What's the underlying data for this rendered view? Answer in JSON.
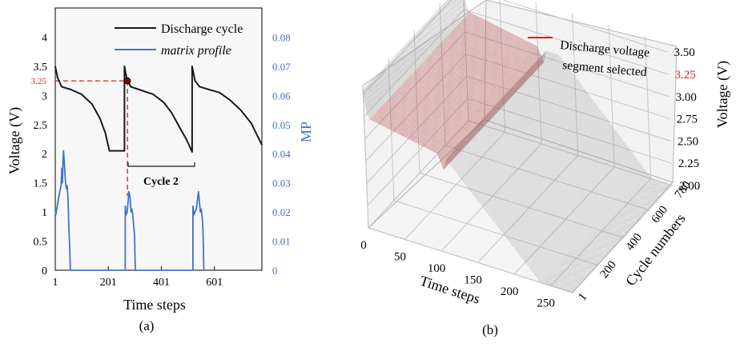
{
  "chart_data": [
    {
      "type": "line",
      "panel_label": "(a)",
      "xlabel": "Time steps",
      "ylabel_left": "Voltage (V)",
      "ylabel_right": "MP",
      "xlim": [
        1,
        780
      ],
      "ylim_left": [
        0,
        4.5
      ],
      "ylim_right": [
        0,
        0.09
      ],
      "x_ticks": [
        1,
        201,
        401,
        601
      ],
      "y_left_ticks": [
        "0",
        "0.5",
        "1",
        "1.5",
        "2",
        "2.5",
        "3",
        "3.5",
        "4"
      ],
      "y_right_ticks": [
        "0",
        "0.01",
        "0.02",
        "0.03",
        "0.04",
        "0.05",
        "0.06",
        "0.07",
        "0.08"
      ],
      "legend": [
        {
          "label": "Discharge cycle",
          "color": "#1a1a1a"
        },
        {
          "label": "matrix profile",
          "color": "#4472c4",
          "italic": true
        }
      ],
      "annotation_value_label": "3.25",
      "annotation_color": "#e31a1c",
      "bracket_label": "Cycle 2",
      "marked_point": {
        "x": 273,
        "y": 3.25
      },
      "series": [
        {
          "name": "Discharge cycle",
          "axis": "left",
          "color": "#1a1a1a",
          "points": [
            [
              1,
              3.5
            ],
            [
              10,
              3.3
            ],
            [
              25,
              3.15
            ],
            [
              60,
              3.1
            ],
            [
              100,
              3.02
            ],
            [
              140,
              2.85
            ],
            [
              170,
              2.6
            ],
            [
              190,
              2.35
            ],
            [
              205,
              2.05
            ],
            [
              262,
              2.05
            ],
            [
              262,
              3.5
            ],
            [
              270,
              3.3
            ],
            [
              285,
              3.15
            ],
            [
              330,
              3.08
            ],
            [
              370,
              3.02
            ],
            [
              410,
              2.88
            ],
            [
              440,
              2.7
            ],
            [
              470,
              2.45
            ],
            [
              495,
              2.25
            ],
            [
              517,
              2.03
            ],
            [
              517,
              3.5
            ],
            [
              528,
              3.25
            ],
            [
              545,
              3.15
            ],
            [
              580,
              3.1
            ],
            [
              620,
              3.05
            ],
            [
              660,
              2.92
            ],
            [
              700,
              2.75
            ],
            [
              740,
              2.52
            ],
            [
              780,
              2.15
            ]
          ]
        },
        {
          "name": "matrix profile",
          "axis": "right",
          "color": "#4472c4",
          "points": [
            [
              1,
              0.021
            ],
            [
              3,
              0.019
            ],
            [
              10,
              0.023
            ],
            [
              18,
              0.027
            ],
            [
              23,
              0.029
            ],
            [
              26,
              0.035
            ],
            [
              28,
              0.03
            ],
            [
              30,
              0.037
            ],
            [
              32,
              0.041
            ],
            [
              35,
              0.037
            ],
            [
              38,
              0.032
            ],
            [
              40,
              0.03
            ],
            [
              43,
              0.028
            ],
            [
              46,
              0.029
            ],
            [
              48,
              0.026
            ],
            [
              50,
              0.022
            ],
            [
              52,
              0.015
            ],
            [
              55,
              0.009
            ],
            [
              58,
              0.0
            ],
            [
              265,
              0.0
            ],
            [
              265,
              0.022
            ],
            [
              268,
              0.019
            ],
            [
              272,
              0.02
            ],
            [
              276,
              0.024
            ],
            [
              279,
              0.027
            ],
            [
              283,
              0.025
            ],
            [
              287,
              0.02
            ],
            [
              290,
              0.021
            ],
            [
              293,
              0.019
            ],
            [
              296,
              0.016
            ],
            [
              300,
              0.012
            ],
            [
              303,
              0.0
            ],
            [
              520,
              0.0
            ],
            [
              520,
              0.022
            ],
            [
              524,
              0.019
            ],
            [
              528,
              0.02
            ],
            [
              533,
              0.021
            ],
            [
              538,
              0.025
            ],
            [
              541,
              0.027
            ],
            [
              544,
              0.024
            ],
            [
              548,
              0.02
            ],
            [
              551,
              0.021
            ],
            [
              555,
              0.018
            ],
            [
              558,
              0.014
            ],
            [
              561,
              0.0
            ]
          ]
        }
      ]
    },
    {
      "type": "surface",
      "panel_label": "(b)",
      "xlabel": "Time steps",
      "ylabel": "Cycle numbers",
      "zlabel": "Voltage (V)",
      "x_ticks": [
        "0",
        "50",
        "100",
        "150",
        "200",
        "250"
      ],
      "y_ticks": [
        "1",
        "200",
        "400",
        "600",
        "780"
      ],
      "z_ticks": [
        "2.00",
        "2.25",
        "2.50",
        "2.75",
        "3.00",
        "3.25",
        "3.50"
      ],
      "z_highlight_tick": "3.25",
      "legend_line1": "Discharge voltage",
      "legend_line2": "segment selected",
      "highlight_color": "#e31a1c",
      "base_color": "#8c8c8c"
    }
  ]
}
